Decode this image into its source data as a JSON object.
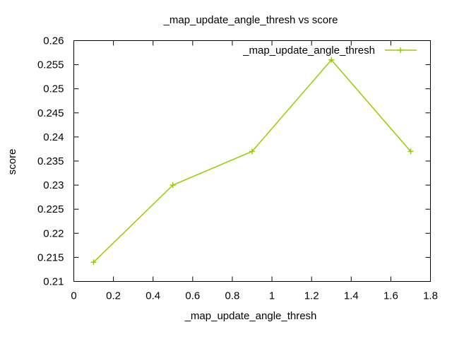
{
  "chart_data": {
    "type": "line",
    "title": "_map_update_angle_thresh vs score",
    "xlabel": "_map_update_angle_thresh",
    "ylabel": "score",
    "xlim": [
      0,
      1.8
    ],
    "ylim": [
      0.21,
      0.26
    ],
    "xticks": [
      "0",
      "0.2",
      "0.4",
      "0.6",
      "0.8",
      "1",
      "1.2",
      "1.4",
      "1.6",
      "1.8"
    ],
    "yticks": [
      "0.21",
      "0.215",
      "0.22",
      "0.225",
      "0.23",
      "0.235",
      "0.24",
      "0.245",
      "0.25",
      "0.255",
      "0.26"
    ],
    "grid": false,
    "legend_position": "top-right",
    "series": [
      {
        "name": "_map_update_angle_thresh",
        "color": "#99cc00",
        "marker": "plus",
        "x": [
          0.1,
          0.5,
          0.9,
          1.3,
          1.7
        ],
        "y": [
          0.214,
          0.23,
          0.237,
          0.256,
          0.237
        ]
      }
    ]
  }
}
